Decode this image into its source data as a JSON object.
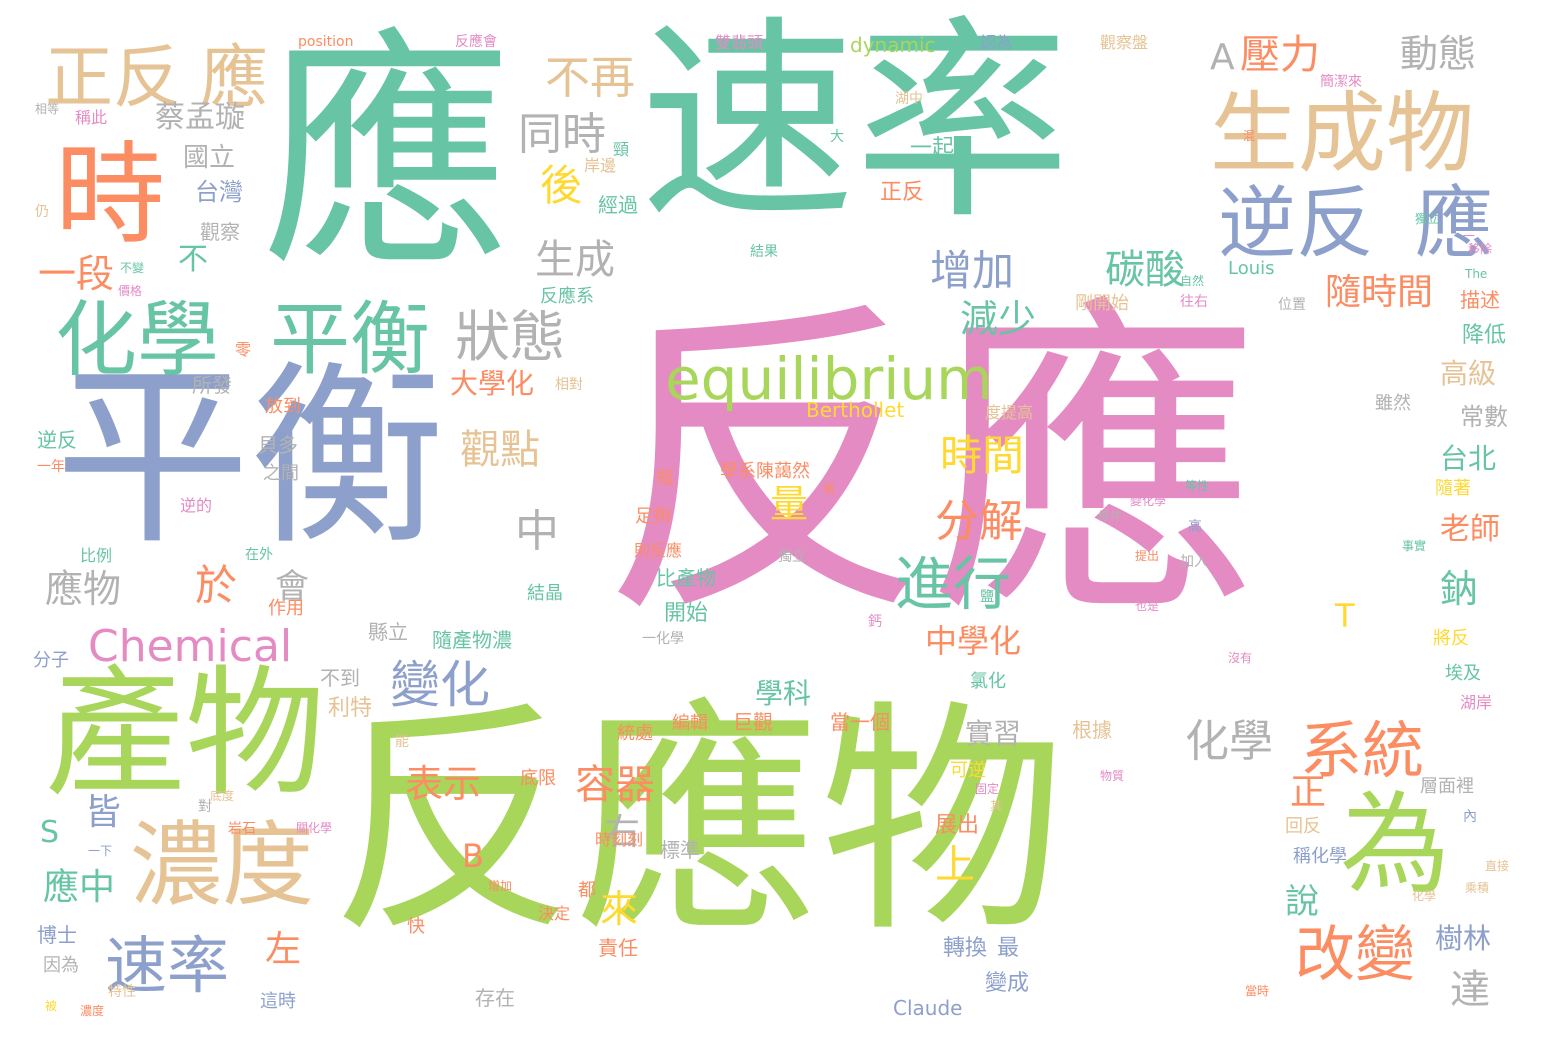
{
  "palette": {
    "pink": "#e48bc4",
    "green": "#a8d65a",
    "teal": "#67c4a5",
    "blue": "#8da0cb",
    "tan": "#e6c394",
    "orange": "#fc8c62",
    "yellow": "#ffd92f",
    "gray": "#b2b2b2"
  },
  "words": [
    "反應",
    "反應物",
    "速率",
    "應",
    "平衡",
    "時",
    "產物",
    "生成物",
    "化學",
    "平衡",
    "逆反",
    "應",
    "濃度",
    "為",
    "正反",
    "應",
    "equilibrium",
    "Chemical",
    "狀態",
    "不再",
    "同時",
    "後",
    "進行",
    "系統",
    "改變",
    "速率",
    "變化",
    "生成",
    "分解",
    "時間",
    "碳酸",
    "增加",
    "減少",
    "壓力",
    "動態",
    "隨時間",
    "A",
    "蔡孟璇",
    "國立",
    "台灣",
    "觀點",
    "中",
    "化學",
    "表示",
    "容器",
    "正",
    "右",
    "來",
    "左",
    "皆",
    "應中",
    "S",
    "B",
    "於",
    "會",
    "應物",
    "一段",
    "不",
    "量",
    "上",
    "大學化",
    "中學化",
    "學科",
    "實習",
    "說",
    "達",
    "樹林",
    "鈉",
    "老師",
    "台北",
    "高級",
    "常數",
    "降低",
    "描述",
    "Louis",
    "Berthollet",
    "dynamic",
    "Claude",
    "position",
    "T",
    "一起",
    "正反",
    "經過",
    "觀察",
    "所發",
    "作用",
    "比產物",
    "開始",
    "隨產物濃",
    "縣立",
    "不到",
    "利特",
    "統處",
    "編輯",
    "巨觀",
    "當一個",
    "根據",
    "展出",
    "轉換",
    "最",
    "變成",
    "存在",
    "責任",
    "決定",
    "快",
    "都",
    "因為",
    "博士",
    "分子",
    "逆反",
    "比例",
    "之間",
    "放到",
    "貝多",
    "逆的",
    "反應系",
    "剛開始",
    "往右",
    "位置",
    "層面裡",
    "稱化學",
    "回反",
    "時刻刻",
    "底限",
    "可逆",
    "學系陳藹然",
    "瓶",
    "足夠",
    "則反應",
    "結晶",
    "零",
    "雖然",
    "隨著",
    "將反",
    "埃及",
    "湖岸",
    "氯化",
    "雙翡頭",
    "反應會",
    "觀察盤",
    "認為",
    "簡潔來",
    "湖中",
    "稱此",
    "相等",
    "仍",
    "頸",
    "岸邊",
    "大",
    "結果",
    "度提高",
    "相對",
    "一年",
    "一下",
    "岩石",
    "關化學",
    "對",
    "鈣",
    "這時",
    "在外",
    "高",
    "內",
    "事實",
    "等性",
    "The",
    "鹽",
    "一化學",
    "沒有",
    "直接",
    "價格",
    "獨立",
    "條件",
    "提出",
    "加入",
    "其",
    "變化學",
    "特性",
    "濃度",
    "底度",
    "獨立",
    "當時",
    "不變",
    "也是",
    "增加",
    "乘積",
    "被",
    "物質",
    "一",
    "固定",
    "標準",
    "第",
    "能",
    "移除",
    "混",
    "自然",
    "化學",
    "新",
    "反向",
    "發現",
    "方程式"
  ]
}
